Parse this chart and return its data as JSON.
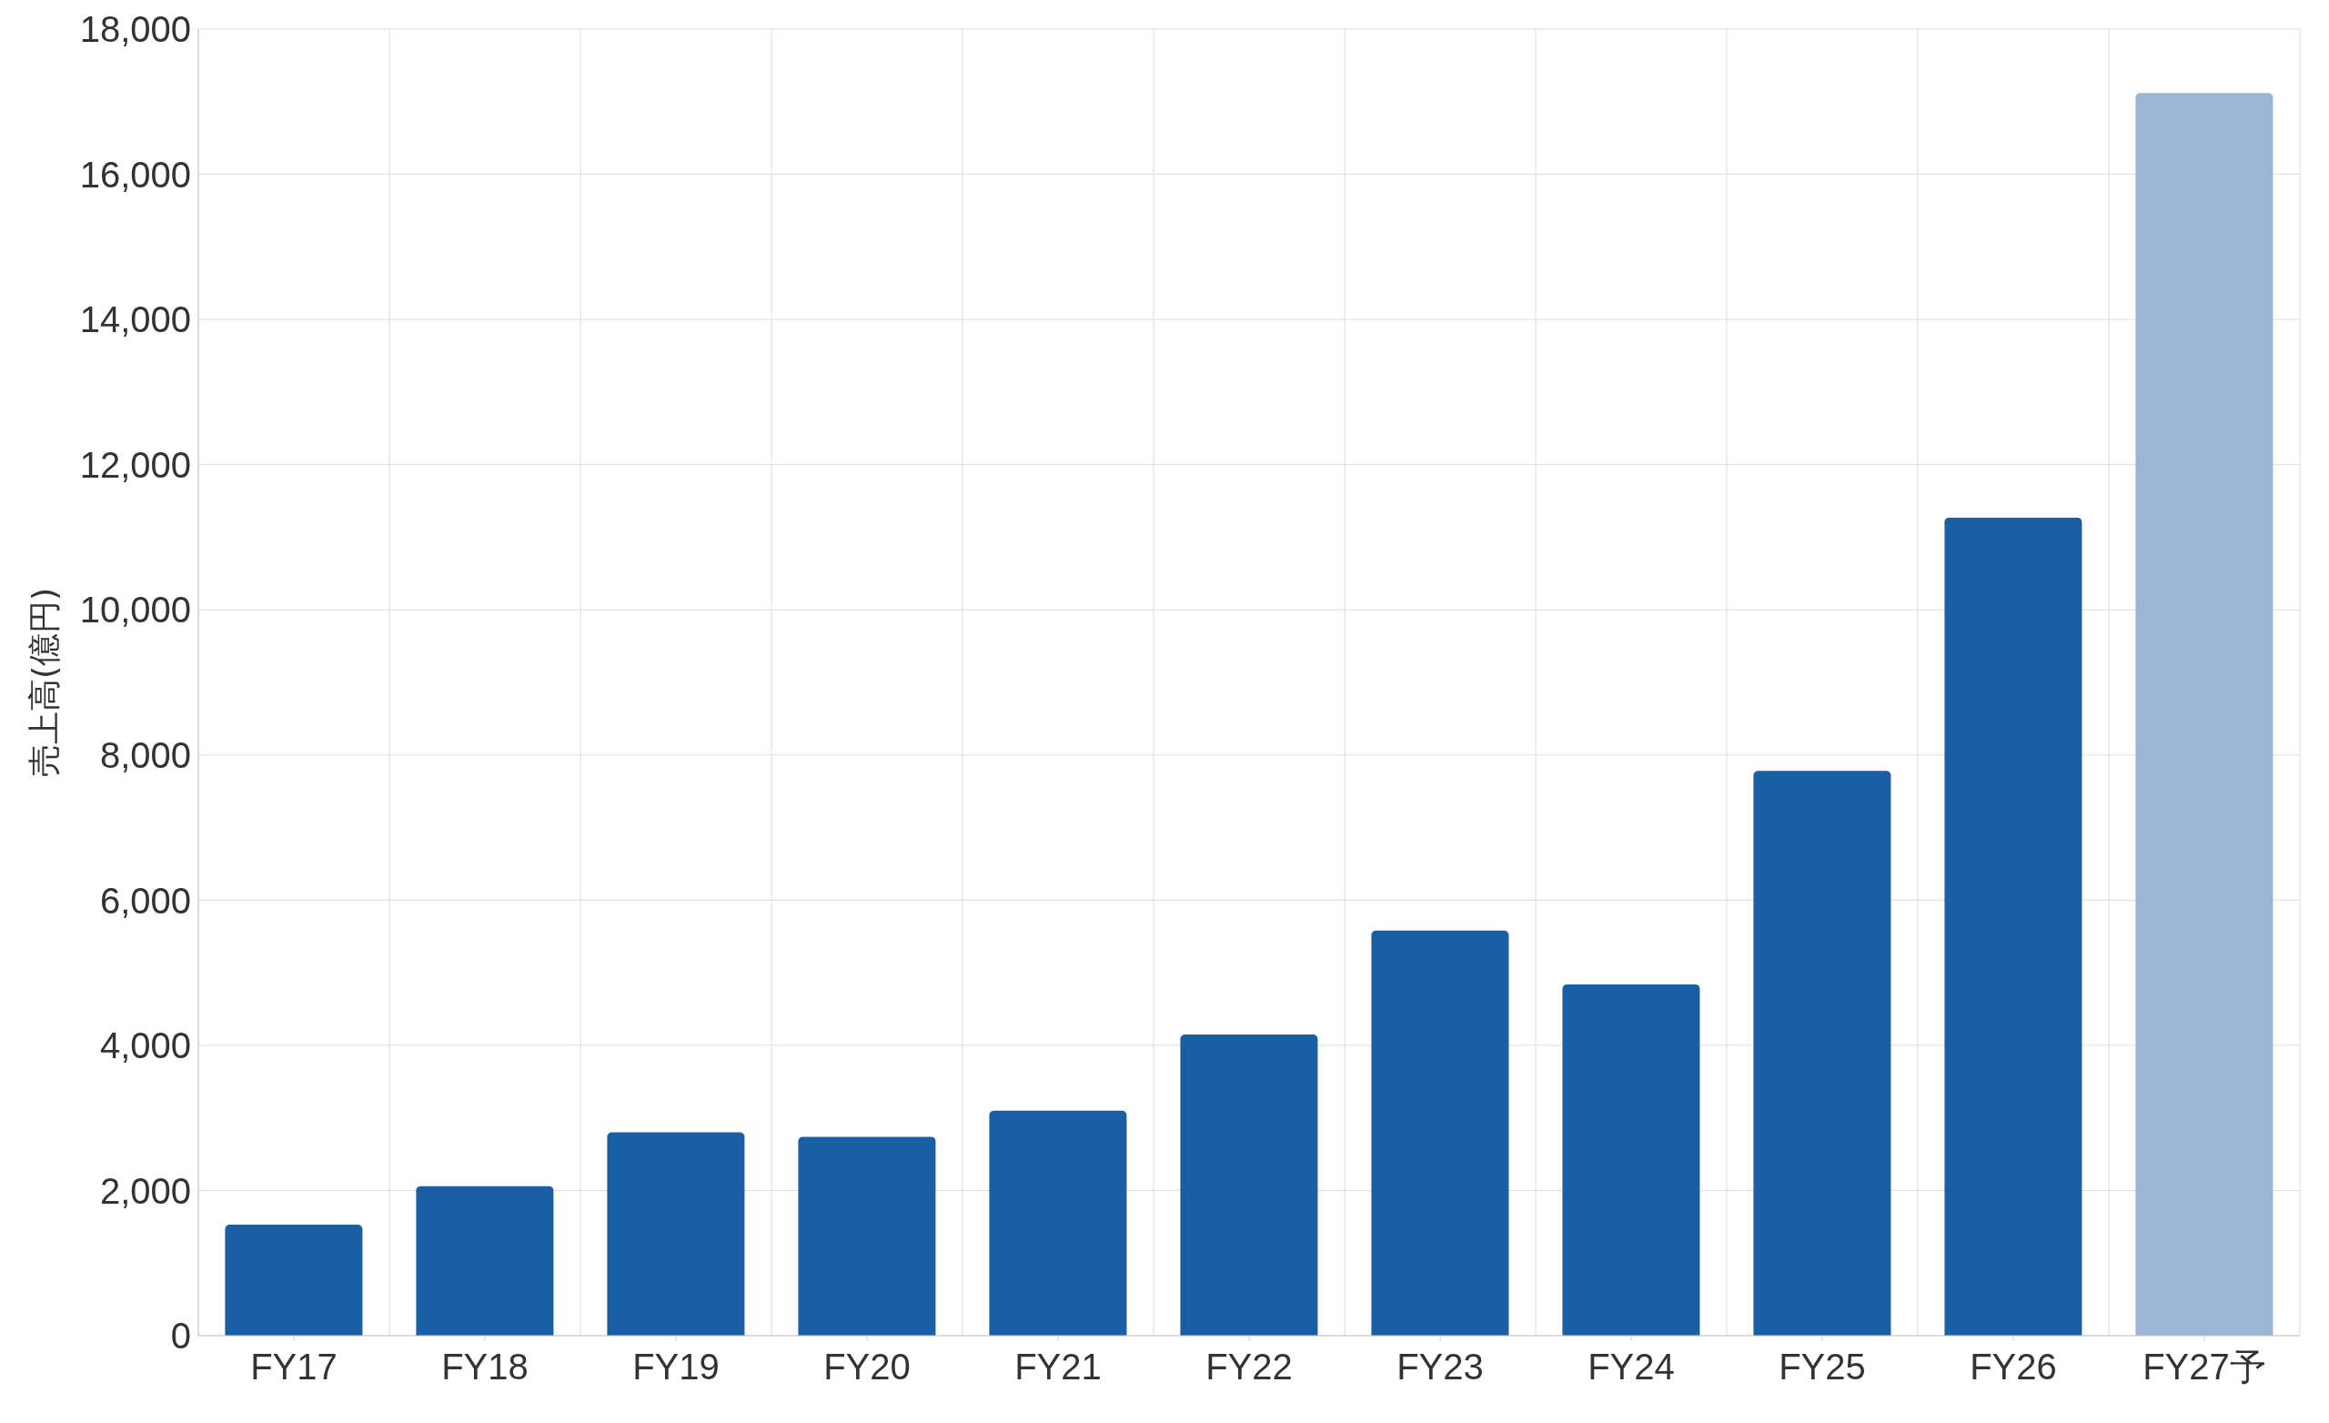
{
  "chart_data": {
    "type": "bar",
    "ylabel": "売上高(億円)",
    "categories": [
      "FY17",
      "FY18",
      "FY19",
      "FY20",
      "FY21",
      "FY22",
      "FY23",
      "FY24",
      "FY25",
      "FY26",
      "FY27予"
    ],
    "values": [
      1530,
      2060,
      2800,
      2740,
      3100,
      4150,
      5580,
      4840,
      7780,
      11270,
      17120
    ],
    "colors": [
      "#1a5fa5",
      "#1a5fa5",
      "#1a5fa5",
      "#1a5fa5",
      "#1a5fa5",
      "#1a5fa5",
      "#1a5fa5",
      "#1a5fa5",
      "#1a5fa5",
      "#1a5fa5",
      "#9bb6d5"
    ],
    "ylim": [
      0,
      18000
    ],
    "yticks": [
      0,
      {
        "value": 2000,
        "label": "2,000"
      },
      {
        "value": 4000,
        "label": "4,000"
      },
      {
        "value": 6000,
        "label": "6,000"
      },
      {
        "value": 8000,
        "label": "8,000"
      },
      {
        "value": 10000,
        "label": "10,000"
      },
      {
        "value": 12000,
        "label": "12,000"
      },
      {
        "value": 14000,
        "label": "14,000"
      },
      {
        "value": 16000,
        "label": "16,000"
      },
      {
        "value": 18000,
        "label": "18,000"
      }
    ],
    "grid": true,
    "legend": false
  }
}
